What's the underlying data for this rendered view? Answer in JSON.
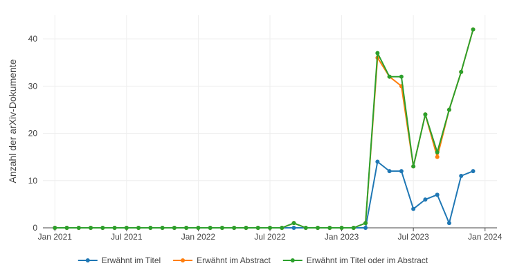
{
  "chart_data": {
    "type": "line",
    "x": [
      "2021-01",
      "2021-02",
      "2021-03",
      "2021-04",
      "2021-05",
      "2021-06",
      "2021-07",
      "2021-08",
      "2021-09",
      "2021-10",
      "2021-11",
      "2021-12",
      "2022-01",
      "2022-02",
      "2022-03",
      "2022-04",
      "2022-05",
      "2022-06",
      "2022-07",
      "2022-08",
      "2022-09",
      "2022-10",
      "2022-11",
      "2022-12",
      "2023-01",
      "2023-02",
      "2023-03",
      "2023-04",
      "2023-05",
      "2023-06",
      "2023-07",
      "2023-08",
      "2023-09",
      "2023-10",
      "2023-11",
      "2023-12"
    ],
    "series": [
      {
        "name": "Erwähnt im Titel",
        "color": "#1f77b4",
        "values": [
          0,
          0,
          0,
          0,
          0,
          0,
          0,
          0,
          0,
          0,
          0,
          0,
          0,
          0,
          0,
          0,
          0,
          0,
          0,
          0,
          0,
          0,
          0,
          0,
          0,
          0,
          0,
          14,
          12,
          12,
          4,
          6,
          7,
          1,
          11,
          12
        ]
      },
      {
        "name": "Erwähnt im Abstract",
        "color": "#ff7f0e",
        "values": [
          0,
          0,
          0,
          0,
          0,
          0,
          0,
          0,
          0,
          0,
          0,
          0,
          0,
          0,
          0,
          0,
          0,
          0,
          0,
          0,
          1,
          0,
          0,
          0,
          0,
          0,
          1,
          36,
          32,
          30,
          13,
          24,
          15,
          25,
          33,
          42
        ]
      },
      {
        "name": "Erwähnt im Titel oder im Abstract",
        "color": "#2ca02c",
        "values": [
          0,
          0,
          0,
          0,
          0,
          0,
          0,
          0,
          0,
          0,
          0,
          0,
          0,
          0,
          0,
          0,
          0,
          0,
          0,
          0,
          1,
          0,
          0,
          0,
          0,
          0,
          1,
          37,
          32,
          32,
          13,
          24,
          16,
          25,
          33,
          42
        ]
      }
    ],
    "xticks": [
      {
        "x": "2021-01",
        "label": "Jan 2021"
      },
      {
        "x": "2021-07",
        "label": "Jul 2021"
      },
      {
        "x": "2022-01",
        "label": "Jan 2022"
      },
      {
        "x": "2022-07",
        "label": "Jul 2022"
      },
      {
        "x": "2023-01",
        "label": "Jan 2023"
      },
      {
        "x": "2023-07",
        "label": "Jul 2023"
      },
      {
        "x": "2024-01",
        "label": "Jan 2024"
      }
    ],
    "yticks": [
      0,
      10,
      20,
      30,
      40
    ],
    "xlim": [
      "2020-12",
      "2024-02"
    ],
    "ylim": [
      0,
      45
    ],
    "ylabel": "Anzahl der arXiv-Dokumente",
    "xlabel": "",
    "grid": true,
    "legend_position": "bottom"
  }
}
